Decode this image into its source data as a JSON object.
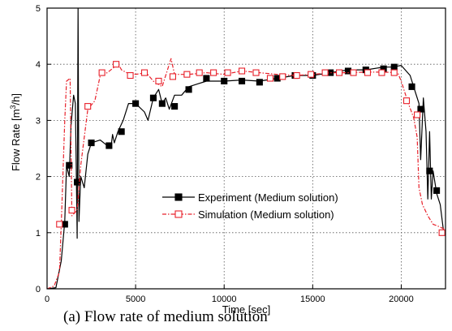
{
  "chart_data": {
    "type": "line",
    "xlabel": "Time [sec]",
    "ylabel_parts": {
      "prefix": "Flow Rate [m",
      "sup": "3",
      "suffix": "/h]"
    },
    "xlim": [
      0,
      22500
    ],
    "ylim": [
      0,
      5
    ],
    "x_ticks": [
      0,
      5000,
      10000,
      15000,
      20000
    ],
    "y_ticks": [
      0,
      1,
      2,
      3,
      4,
      5
    ],
    "grid": "dotted",
    "legend_position": "center-right",
    "series": [
      {
        "name": "Experiment (Medium solution)",
        "color": "#000000",
        "marker": "filled-square",
        "line_style": "solid",
        "points": [
          [
            0,
            0
          ],
          [
            500,
            0.02
          ],
          [
            800,
            0.5
          ],
          [
            1000,
            1.2
          ],
          [
            1100,
            2.2
          ],
          [
            1250,
            2.0
          ],
          [
            1350,
            2.9
          ],
          [
            1500,
            3.45
          ],
          [
            1600,
            3.3
          ],
          [
            1700,
            0.9
          ],
          [
            1750,
            5.0
          ],
          [
            1800,
            1.2
          ],
          [
            1900,
            2.0
          ],
          [
            2100,
            1.8
          ],
          [
            2300,
            2.4
          ],
          [
            2500,
            2.6
          ],
          [
            3000,
            2.65
          ],
          [
            3400,
            2.55
          ],
          [
            3600,
            2.5
          ],
          [
            3700,
            2.75
          ],
          [
            3800,
            2.6
          ],
          [
            4000,
            2.8
          ],
          [
            4300,
            3.0
          ],
          [
            4600,
            3.3
          ],
          [
            5000,
            3.3
          ],
          [
            5500,
            3.15
          ],
          [
            5700,
            3.0
          ],
          [
            6000,
            3.4
          ],
          [
            6300,
            3.55
          ],
          [
            6500,
            3.3
          ],
          [
            6700,
            3.4
          ],
          [
            6900,
            3.2
          ],
          [
            7200,
            3.45
          ],
          [
            7600,
            3.45
          ],
          [
            8000,
            3.6
          ],
          [
            8500,
            3.65
          ],
          [
            9000,
            3.7
          ],
          [
            9500,
            3.7
          ],
          [
            10000,
            3.7
          ],
          [
            11000,
            3.72
          ],
          [
            12000,
            3.7
          ],
          [
            13000,
            3.75
          ],
          [
            14000,
            3.8
          ],
          [
            15000,
            3.8
          ],
          [
            16000,
            3.85
          ],
          [
            17000,
            3.9
          ],
          [
            18000,
            3.9
          ],
          [
            19000,
            3.95
          ],
          [
            19500,
            3.95
          ],
          [
            20000,
            3.98
          ],
          [
            20500,
            3.8
          ],
          [
            20800,
            3.5
          ],
          [
            21000,
            3.3
          ],
          [
            21100,
            2.3
          ],
          [
            21250,
            3.4
          ],
          [
            21400,
            2.8
          ],
          [
            21500,
            1.6
          ],
          [
            21600,
            2.8
          ],
          [
            21700,
            1.6
          ],
          [
            21800,
            2.1
          ],
          [
            22000,
            1.7
          ],
          [
            22200,
            1.5
          ],
          [
            22400,
            1.0
          ]
        ],
        "markers": [
          [
            1000,
            1.15
          ],
          [
            1250,
            2.2
          ],
          [
            1700,
            1.9
          ],
          [
            2500,
            2.6
          ],
          [
            3500,
            2.55
          ],
          [
            4200,
            2.8
          ],
          [
            5000,
            3.3
          ],
          [
            6000,
            3.4
          ],
          [
            6500,
            3.3
          ],
          [
            7200,
            3.25
          ],
          [
            8000,
            3.55
          ],
          [
            9000,
            3.75
          ],
          [
            10000,
            3.7
          ],
          [
            11000,
            3.7
          ],
          [
            12000,
            3.68
          ],
          [
            13000,
            3.75
          ],
          [
            14000,
            3.8
          ],
          [
            15000,
            3.8
          ],
          [
            16000,
            3.85
          ],
          [
            17000,
            3.88
          ],
          [
            18000,
            3.9
          ],
          [
            19000,
            3.92
          ],
          [
            19600,
            3.95
          ],
          [
            20600,
            3.6
          ],
          [
            21100,
            3.2
          ],
          [
            21600,
            2.1
          ],
          [
            22000,
            1.75
          ]
        ]
      },
      {
        "name": "Simulation (Medium solution)",
        "color": "#e8202a",
        "marker": "open-square",
        "line_style": "dash-dot",
        "points": [
          [
            0,
            0
          ],
          [
            400,
            0.05
          ],
          [
            700,
            0.3
          ],
          [
            800,
            1.15
          ],
          [
            1000,
            3.0
          ],
          [
            1100,
            3.7
          ],
          [
            1300,
            3.75
          ],
          [
            1400,
            1.3
          ],
          [
            1700,
            1.4
          ],
          [
            1900,
            2.2
          ],
          [
            2300,
            3.2
          ],
          [
            2700,
            3.35
          ],
          [
            3000,
            3.8
          ],
          [
            3400,
            3.85
          ],
          [
            3800,
            3.95
          ],
          [
            4000,
            4.02
          ],
          [
            4200,
            3.9
          ],
          [
            4500,
            3.85
          ],
          [
            5000,
            3.82
          ],
          [
            5600,
            3.85
          ],
          [
            6000,
            3.7
          ],
          [
            6500,
            3.6
          ],
          [
            6900,
            4.0
          ],
          [
            7000,
            4.1
          ],
          [
            7200,
            3.82
          ],
          [
            8000,
            3.82
          ],
          [
            9000,
            3.85
          ],
          [
            10000,
            3.82
          ],
          [
            11000,
            3.88
          ],
          [
            12000,
            3.85
          ],
          [
            13000,
            3.82
          ],
          [
            14000,
            3.8
          ],
          [
            15000,
            3.82
          ],
          [
            16000,
            3.85
          ],
          [
            17000,
            3.85
          ],
          [
            18000,
            3.86
          ],
          [
            19000,
            3.86
          ],
          [
            19800,
            3.85
          ],
          [
            20000,
            3.7
          ],
          [
            20400,
            3.3
          ],
          [
            20700,
            3.05
          ],
          [
            20900,
            2.7
          ],
          [
            21000,
            1.8
          ],
          [
            21200,
            1.5
          ],
          [
            21500,
            1.3
          ],
          [
            21800,
            1.15
          ],
          [
            22200,
            1.1
          ],
          [
            22500,
            1.05
          ]
        ],
        "markers": [
          [
            700,
            1.15
          ],
          [
            1400,
            1.4
          ],
          [
            2300,
            3.25
          ],
          [
            3100,
            3.85
          ],
          [
            3900,
            4.0
          ],
          [
            4700,
            3.8
          ],
          [
            5500,
            3.85
          ],
          [
            6300,
            3.7
          ],
          [
            7100,
            3.78
          ],
          [
            7900,
            3.82
          ],
          [
            8600,
            3.85
          ],
          [
            9400,
            3.85
          ],
          [
            10200,
            3.85
          ],
          [
            11000,
            3.88
          ],
          [
            11800,
            3.85
          ],
          [
            12600,
            3.75
          ],
          [
            13300,
            3.78
          ],
          [
            14100,
            3.8
          ],
          [
            14900,
            3.82
          ],
          [
            15700,
            3.85
          ],
          [
            16500,
            3.85
          ],
          [
            17300,
            3.85
          ],
          [
            18100,
            3.85
          ],
          [
            18900,
            3.85
          ],
          [
            19600,
            3.85
          ],
          [
            20300,
            3.35
          ],
          [
            20900,
            3.1
          ],
          [
            22300,
            1.0
          ]
        ]
      }
    ],
    "caption": "(a) Flow rate of medium solution"
  }
}
